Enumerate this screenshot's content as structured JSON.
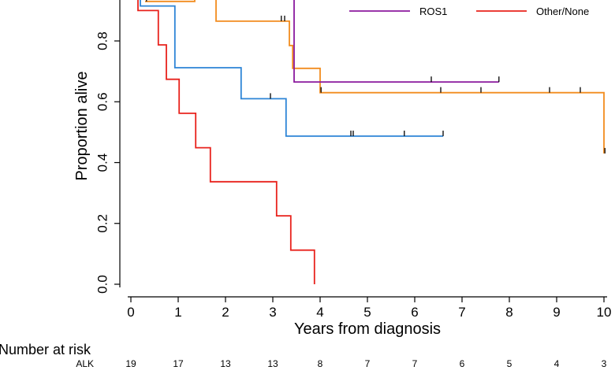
{
  "chart_data": {
    "type": "line",
    "subtype": "kaplan-meier-step",
    "title": "",
    "xlabel": "Years from diagnosis",
    "ylabel": "Proportion alive",
    "xlim": [
      0,
      10
    ],
    "ylim": [
      0,
      0.95
    ],
    "x_ticks": [
      "0",
      "1",
      "2",
      "3",
      "4",
      "5",
      "6",
      "7",
      "8",
      "9",
      "10"
    ],
    "y_ticks": [
      "0.0",
      "0.2",
      "0.4",
      "0.6",
      "0.8"
    ],
    "grid": false,
    "legend_position": "top",
    "legend": [
      {
        "name": "ROS1",
        "color": "#8b1a9e"
      },
      {
        "name": "Other/None",
        "color": "#e8221c"
      }
    ],
    "series": [
      {
        "name": "ALK",
        "color": "#f28c1e",
        "steps": [
          [
            0.3,
            0.93
          ],
          [
            1.35,
            0.93
          ],
          [
            1.35,
            0.95
          ],
          [
            1.8,
            0.95
          ],
          [
            1.8,
            0.865
          ],
          [
            3.35,
            0.865
          ],
          [
            3.35,
            0.785
          ],
          [
            3.42,
            0.785
          ],
          [
            3.42,
            0.71
          ],
          [
            4.0,
            0.71
          ],
          [
            4.0,
            0.63
          ],
          [
            10.0,
            0.63
          ],
          [
            10.0,
            0.43
          ]
        ],
        "censored": [
          [
            3.18,
            0.865
          ],
          [
            3.25,
            0.865
          ],
          [
            4.02,
            0.63
          ],
          [
            6.55,
            0.63
          ],
          [
            7.4,
            0.63
          ],
          [
            8.85,
            0.63
          ],
          [
            9.5,
            0.63
          ],
          [
            10.02,
            0.43
          ]
        ]
      },
      {
        "name": "ROS1",
        "color": "#8b1a9e",
        "steps": [
          [
            3.45,
            0.95
          ],
          [
            3.45,
            0.665
          ],
          [
            7.78,
            0.665
          ]
        ],
        "censored": [
          [
            6.35,
            0.665
          ],
          [
            7.78,
            0.665
          ]
        ]
      },
      {
        "name": "",
        "color": "#2c84d6",
        "steps": [
          [
            0.2,
            0.95
          ],
          [
            0.2,
            0.915
          ],
          [
            0.93,
            0.915
          ],
          [
            0.93,
            0.712
          ],
          [
            2.33,
            0.712
          ],
          [
            2.33,
            0.61
          ],
          [
            3.28,
            0.61
          ],
          [
            3.28,
            0.487
          ],
          [
            6.6,
            0.487
          ]
        ],
        "censored": [
          [
            2.95,
            0.61
          ],
          [
            4.65,
            0.487
          ],
          [
            4.7,
            0.487
          ],
          [
            5.78,
            0.487
          ],
          [
            6.6,
            0.487
          ]
        ]
      },
      {
        "name": "Other/None",
        "color": "#e8221c",
        "steps": [
          [
            0.15,
            0.95
          ],
          [
            0.15,
            0.9
          ],
          [
            0.58,
            0.9
          ],
          [
            0.58,
            0.787
          ],
          [
            0.75,
            0.787
          ],
          [
            0.75,
            0.674
          ],
          [
            1.02,
            0.674
          ],
          [
            1.02,
            0.562
          ],
          [
            1.37,
            0.562
          ],
          [
            1.37,
            0.449
          ],
          [
            1.68,
            0.449
          ],
          [
            1.68,
            0.337
          ],
          [
            3.08,
            0.337
          ],
          [
            3.08,
            0.225
          ],
          [
            3.38,
            0.225
          ],
          [
            3.38,
            0.112
          ],
          [
            3.88,
            0.112
          ],
          [
            3.88,
            0.0
          ]
        ],
        "censored": [
          [
            0.33,
            0.93
          ]
        ]
      }
    ],
    "risk_table": {
      "title": "Number at risk",
      "rows": [
        {
          "label": "ALK",
          "values": [
            "19",
            "17",
            "13",
            "13",
            "8",
            "7",
            "7",
            "6",
            "5",
            "4",
            "3"
          ]
        }
      ]
    }
  }
}
